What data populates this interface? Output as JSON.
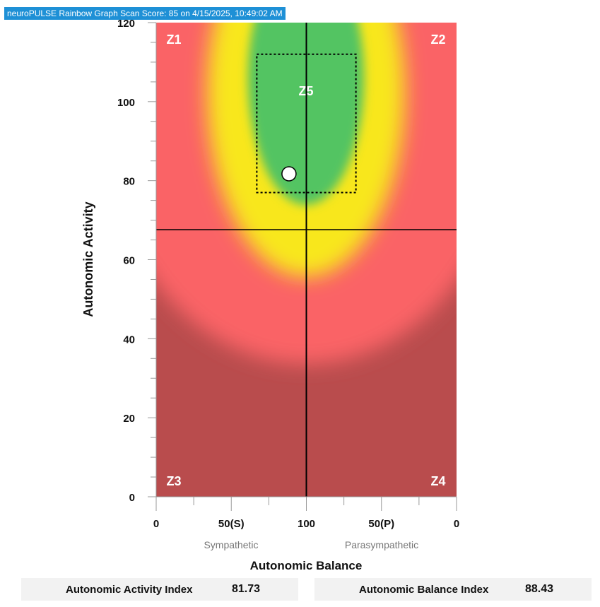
{
  "title": "neuroPULSE Rainbow Graph Scan Score: 85 on 4/15/2025, 10:49:02 AM",
  "chart_data": {
    "type": "scatter",
    "xlabel": "Autonomic Balance",
    "ylabel": "Autonomic Activity",
    "xlim": [
      0,
      200
    ],
    "ylim": [
      0,
      120
    ],
    "x_tick_labels": [
      "0",
      "50(S)",
      "100",
      "50(P)",
      "0"
    ],
    "y_ticks": [
      0,
      20,
      40,
      60,
      80,
      100,
      120
    ],
    "x_sublabels": {
      "left": "Sympathetic",
      "right": "Parasympathetic"
    },
    "zones": [
      "Z1",
      "Z2",
      "Z3",
      "Z4",
      "Z5"
    ],
    "crosshair": {
      "x": 100,
      "y": 67.6
    },
    "target_box": {
      "x": [
        67,
        133
      ],
      "y": [
        77,
        112
      ]
    },
    "point": {
      "x": 88.43,
      "y": 81.73
    },
    "colors": {
      "red": "#fa6466",
      "dark_red": "#b94c4d",
      "yellow": "#f8e71d",
      "green": "#52c462"
    }
  },
  "metrics": {
    "activity": {
      "label": "Autonomic Activity Index",
      "value": "81.73"
    },
    "balance": {
      "label": "Autonomic Balance Index",
      "value": "88.43"
    }
  }
}
